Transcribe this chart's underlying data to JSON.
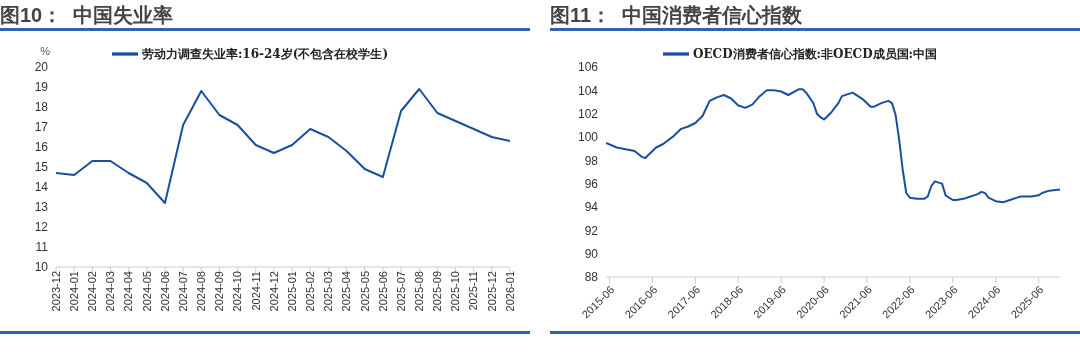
{
  "chart_data": [
    {
      "type": "line",
      "title": "图10：  中国失业率",
      "ylabel": "%",
      "categories": [
        "2023-12",
        "2024-01",
        "2024-02",
        "2024-03",
        "2024-04",
        "2024-05",
        "2024-06",
        "2024-07",
        "2024-08",
        "2024-09",
        "2024-10",
        "2024-11",
        "2024-12",
        "2025-01",
        "2025-02",
        "2025-03",
        "2025-04",
        "2025-05",
        "2025-06",
        "2025-07",
        "2025-08",
        "2025-09",
        "2025-10",
        "2025-11",
        "2025-12",
        "2026-01"
      ],
      "series": [
        {
          "name": "劳动力调查失业率:16-24岁(不包含在校学生)",
          "color": "#1a4fa0",
          "values": [
            14.7,
            14.6,
            15.3,
            15.3,
            14.7,
            14.2,
            13.2,
            17.1,
            18.8,
            17.6,
            17.1,
            16.1,
            15.7,
            16.1,
            16.9,
            16.5,
            15.8,
            14.9,
            14.5,
            17.8,
            18.9,
            17.7,
            17.3,
            16.9,
            16.5,
            16.3
          ]
        }
      ],
      "ylim": [
        10,
        20
      ],
      "yticks": [
        10,
        11,
        12,
        13,
        14,
        15,
        16,
        17,
        18,
        19,
        20
      ],
      "grid": false,
      "legend": "top",
      "marker": "none",
      "line_style": "solid"
    },
    {
      "type": "line",
      "title": "图11：  中国消费者信心指数",
      "x": [
        "2015-05",
        "2015-08",
        "2016-01",
        "2016-03",
        "2016-04",
        "2016-07",
        "2016-09",
        "2016-12",
        "2017-02",
        "2017-04",
        "2017-06",
        "2017-08",
        "2017-10",
        "2017-12",
        "2018-02",
        "2018-04",
        "2018-06",
        "2018-08",
        "2018-10",
        "2018-12",
        "2019-02",
        "2019-04",
        "2019-06",
        "2019-08",
        "2019-11",
        "2019-12",
        "2020-01",
        "2020-03",
        "2020-04",
        "2020-05",
        "2020-06",
        "2020-08",
        "2020-10",
        "2020-11",
        "2021-02",
        "2021-05",
        "2021-07",
        "2021-08",
        "2021-10",
        "2021-12",
        "2022-01",
        "2022-02",
        "2022-03",
        "2022-04",
        "2022-05",
        "2022-06",
        "2022-08",
        "2022-10",
        "2022-11",
        "2022-12",
        "2023-01",
        "2023-03",
        "2023-04",
        "2023-06",
        "2023-07",
        "2023-09",
        "2023-11",
        "2024-01",
        "2024-02",
        "2024-03",
        "2024-04",
        "2024-06",
        "2024-08",
        "2024-10",
        "2024-12",
        "2025-01",
        "2025-04",
        "2025-06",
        "2025-07",
        "2025-09",
        "2025-12"
      ],
      "series": [
        {
          "name": "OECD消费者信心指数:非OECD成员国:中国",
          "color": "#1a4fa0",
          "values": [
            99.5,
            99.1,
            98.8,
            98.3,
            98.2,
            99.1,
            99.4,
            100.1,
            100.7,
            100.9,
            101.2,
            101.8,
            103.1,
            103.4,
            103.6,
            103.3,
            102.7,
            102.5,
            102.8,
            103.5,
            104.0,
            104.0,
            103.9,
            103.6,
            104.1,
            104.1,
            103.8,
            102.9,
            102.0,
            101.7,
            101.5,
            102.1,
            102.9,
            103.5,
            103.8,
            103.2,
            102.6,
            102.6,
            102.9,
            103.1,
            102.9,
            101.9,
            99.8,
            97.2,
            95.2,
            94.8,
            94.7,
            94.7,
            94.9,
            95.8,
            96.2,
            96.0,
            95.0,
            94.6,
            94.6,
            94.7,
            94.9,
            95.1,
            95.3,
            95.2,
            94.8,
            94.5,
            94.4,
            94.6,
            94.8,
            94.9,
            94.9,
            95.0,
            95.2,
            95.4,
            95.5
          ]
        }
      ],
      "xlim": [
        "2015-05",
        "2025-12"
      ],
      "xticks": [
        "2015-06",
        "2016-06",
        "2017-06",
        "2018-06",
        "2019-06",
        "2020-06",
        "2021-06",
        "2022-06",
        "2023-06",
        "2024-06",
        "2025-06"
      ],
      "ylim": [
        88,
        106
      ],
      "yticks": [
        88,
        90,
        92,
        94,
        96,
        98,
        100,
        102,
        104,
        106
      ],
      "grid": false,
      "legend": "top",
      "marker": "none",
      "line_style": "solid"
    }
  ]
}
